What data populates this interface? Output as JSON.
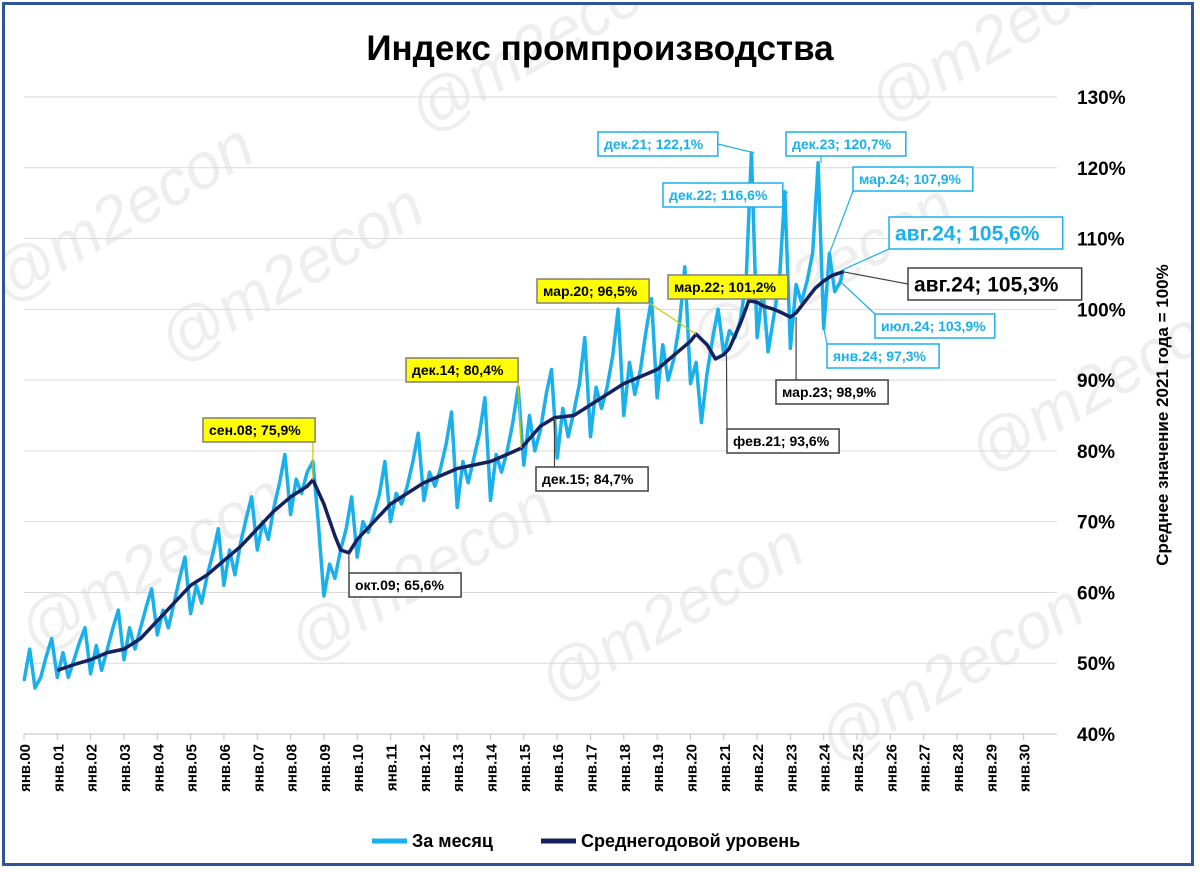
{
  "watermark": "@m2econ",
  "colors": {
    "monthly": "#1ab0ec",
    "average": "#14215c",
    "callout_yellow": "#ffff00",
    "frame": "#2f5597"
  },
  "chart_data": {
    "type": "line",
    "title": "Индекс промпроизводства",
    "ylabel": "Среднее значение 2021 года = 100%",
    "ylim": [
      40,
      130
    ],
    "yticks": [
      40,
      50,
      60,
      70,
      80,
      90,
      100,
      110,
      120,
      130
    ],
    "ytick_labels": [
      "40%",
      "50%",
      "60%",
      "70%",
      "80%",
      "90%",
      "100%",
      "110%",
      "120%",
      "130%"
    ],
    "xlim": [
      2000,
      2031
    ],
    "xticks": [
      2000,
      2001,
      2002,
      2003,
      2004,
      2005,
      2006,
      2007,
      2008,
      2009,
      2010,
      2011,
      2012,
      2013,
      2014,
      2015,
      2016,
      2017,
      2018,
      2019,
      2020,
      2021,
      2022,
      2023,
      2024,
      2025,
      2026,
      2027,
      2028,
      2029,
      2030
    ],
    "xtick_labels": [
      "янв.00",
      "янв.01",
      "янв.02",
      "янв.03",
      "янв.04",
      "янв.05",
      "янв.06",
      "янв.07",
      "янв.08",
      "янв.09",
      "янв.10",
      "янв.11",
      "янв.12",
      "янв.13",
      "янв.14",
      "янв.15",
      "янв.16",
      "янв.17",
      "янв.18",
      "янв.19",
      "янв.20",
      "янв.21",
      "янв.22",
      "янв.23",
      "янв.24",
      "янв.25",
      "янв.26",
      "янв.27",
      "янв.28",
      "янв.29",
      "янв.30"
    ],
    "legend_position": "bottom",
    "grid": "horizontal",
    "series": [
      {
        "name": "За месяц",
        "color": "#1ab0ec",
        "x": [
          2000.0,
          2000.17,
          2000.33,
          2000.5,
          2000.67,
          2000.83,
          2001.0,
          2001.17,
          2001.33,
          2001.5,
          2001.67,
          2001.83,
          2002.0,
          2002.17,
          2002.33,
          2002.5,
          2002.67,
          2002.83,
          2003.0,
          2003.17,
          2003.33,
          2003.5,
          2003.67,
          2003.83,
          2004.0,
          2004.17,
          2004.33,
          2004.5,
          2004.67,
          2004.83,
          2005.0,
          2005.17,
          2005.33,
          2005.5,
          2005.67,
          2005.83,
          2006.0,
          2006.17,
          2006.33,
          2006.5,
          2006.67,
          2006.83,
          2007.0,
          2007.17,
          2007.33,
          2007.5,
          2007.67,
          2007.83,
          2008.0,
          2008.17,
          2008.33,
          2008.5,
          2008.67,
          2008.83,
          2009.0,
          2009.17,
          2009.33,
          2009.5,
          2009.67,
          2009.83,
          2010.0,
          2010.17,
          2010.33,
          2010.5,
          2010.67,
          2010.83,
          2011.0,
          2011.17,
          2011.33,
          2011.5,
          2011.67,
          2011.83,
          2012.0,
          2012.17,
          2012.33,
          2012.5,
          2012.67,
          2012.83,
          2013.0,
          2013.17,
          2013.33,
          2013.5,
          2013.67,
          2013.83,
          2014.0,
          2014.17,
          2014.33,
          2014.5,
          2014.67,
          2014.83,
          2015.0,
          2015.17,
          2015.33,
          2015.5,
          2015.67,
          2015.83,
          2016.0,
          2016.17,
          2016.33,
          2016.5,
          2016.67,
          2016.83,
          2017.0,
          2017.17,
          2017.33,
          2017.5,
          2017.67,
          2017.83,
          2018.0,
          2018.17,
          2018.33,
          2018.5,
          2018.67,
          2018.83,
          2019.0,
          2019.17,
          2019.33,
          2019.5,
          2019.67,
          2019.83,
          2020.0,
          2020.17,
          2020.33,
          2020.5,
          2020.67,
          2020.83,
          2021.0,
          2021.17,
          2021.33,
          2021.5,
          2021.67,
          2021.83,
          2022.0,
          2022.17,
          2022.33,
          2022.5,
          2022.67,
          2022.83,
          2023.0,
          2023.17,
          2023.33,
          2023.5,
          2023.67,
          2023.83,
          2024.0,
          2024.17,
          2024.33,
          2024.5,
          2024.58
        ],
        "values": [
          47.5,
          52.0,
          46.5,
          48.0,
          51.0,
          53.5,
          48.0,
          51.5,
          48.0,
          50.5,
          53.0,
          55.0,
          48.5,
          52.5,
          49.0,
          52.0,
          55.0,
          57.5,
          50.5,
          55.0,
          52.0,
          55.0,
          58.0,
          60.5,
          54.0,
          57.5,
          55.0,
          58.5,
          62.0,
          65.0,
          57.0,
          61.0,
          58.5,
          62.5,
          65.5,
          69.0,
          61.0,
          66.0,
          62.5,
          67.0,
          70.5,
          73.5,
          66.0,
          70.0,
          67.5,
          72.0,
          75.5,
          79.5,
          71.0,
          76.0,
          74.0,
          77.0,
          78.5,
          70.0,
          59.5,
          64.0,
          62.0,
          66.0,
          69.0,
          73.5,
          65.0,
          70.0,
          68.5,
          71.0,
          74.0,
          78.5,
          70.0,
          74.0,
          72.5,
          75.0,
          78.5,
          82.5,
          73.0,
          77.0,
          75.0,
          77.5,
          81.0,
          85.5,
          72.0,
          78.5,
          75.5,
          79.0,
          82.5,
          87.5,
          73.0,
          79.5,
          77.0,
          80.0,
          84.0,
          89.0,
          78.0,
          85.0,
          80.0,
          83.0,
          88.0,
          91.5,
          79.0,
          86.0,
          82.0,
          85.5,
          89.5,
          96.0,
          82.0,
          89.0,
          86.0,
          89.0,
          93.5,
          100.0,
          85.0,
          92.5,
          88.0,
          91.5,
          97.0,
          101.5,
          87.5,
          95.0,
          90.0,
          93.0,
          98.0,
          106.0,
          89.5,
          92.5,
          84.0,
          91.0,
          96.0,
          100.0,
          93.6,
          97.0,
          96.0,
          98.5,
          104.0,
          122.1,
          96.0,
          103.0,
          94.0,
          99.0,
          104.0,
          116.6,
          94.5,
          103.5,
          101.0,
          104.0,
          108.0,
          120.7,
          97.3,
          107.9,
          102.5,
          103.9,
          105.6
        ]
      },
      {
        "name": "Среднегодовой уровень",
        "color": "#14215c",
        "x": [
          2001.0,
          2001.5,
          2002.0,
          2002.5,
          2003.0,
          2003.5,
          2004.0,
          2004.5,
          2005.0,
          2005.5,
          2006.0,
          2006.5,
          2007.0,
          2007.5,
          2008.0,
          2008.5,
          2008.67,
          2009.0,
          2009.33,
          2009.5,
          2009.75,
          2010.0,
          2010.5,
          2011.0,
          2011.5,
          2012.0,
          2012.5,
          2013.0,
          2013.5,
          2014.0,
          2014.5,
          2014.92,
          2015.5,
          2015.92,
          2016.5,
          2017.0,
          2017.5,
          2018.0,
          2018.5,
          2019.0,
          2019.5,
          2020.0,
          2020.17,
          2020.5,
          2020.75,
          2021.0,
          2021.17,
          2021.5,
          2021.75,
          2022.0,
          2022.17,
          2022.5,
          2022.75,
          2023.0,
          2023.17,
          2023.5,
          2023.75,
          2024.0,
          2024.25,
          2024.58
        ],
        "values": [
          49.0,
          49.8,
          50.5,
          51.5,
          52.0,
          53.5,
          56.0,
          58.5,
          61.0,
          62.5,
          64.5,
          66.5,
          69.0,
          71.5,
          73.5,
          75.0,
          75.9,
          72.5,
          68.0,
          66.0,
          65.6,
          67.5,
          70.0,
          72.5,
          74.0,
          75.5,
          76.5,
          77.5,
          78.0,
          78.5,
          79.5,
          80.4,
          83.5,
          84.7,
          85.0,
          86.5,
          88.0,
          89.5,
          90.5,
          91.5,
          93.5,
          95.5,
          96.5,
          95.0,
          93.0,
          93.6,
          94.5,
          98.0,
          101.2,
          101.0,
          100.5,
          100.0,
          99.5,
          98.9,
          99.5,
          101.5,
          103.0,
          104.0,
          104.8,
          105.3
        ]
      }
    ],
    "annotations": [
      {
        "text": "сен.08; 75,9%",
        "x": 2008.67,
        "y": 75.9,
        "style": "yellow"
      },
      {
        "text": "окт.09; 65,6%",
        "x": 2009.75,
        "y": 65.6,
        "style": "white"
      },
      {
        "text": "дек.14; 80,4%",
        "x": 2014.92,
        "y": 80.4,
        "style": "yellow"
      },
      {
        "text": "дек.15; 84,7%",
        "x": 2015.92,
        "y": 84.7,
        "style": "white"
      },
      {
        "text": "мар.20; 96,5%",
        "x": 2020.17,
        "y": 96.5,
        "style": "yellow"
      },
      {
        "text": "фев.21; 93,6%",
        "x": 2021.08,
        "y": 93.6,
        "style": "white"
      },
      {
        "text": "мар.22; 101,2%",
        "x": 2022.17,
        "y": 101.2,
        "style": "yellow"
      },
      {
        "text": "мар.23; 98,9%",
        "x": 2023.17,
        "y": 98.9,
        "style": "white"
      },
      {
        "text": "дек.21; 122,1%",
        "x": 2021.92,
        "y": 122.1,
        "style": "blue"
      },
      {
        "text": "дек.22; 116,6%",
        "x": 2022.92,
        "y": 116.6,
        "style": "blue"
      },
      {
        "text": "дек.23; 120,7%",
        "x": 2023.92,
        "y": 120.7,
        "style": "blue"
      },
      {
        "text": "мар.24; 107,9%",
        "x": 2024.17,
        "y": 107.9,
        "style": "blue"
      },
      {
        "text": "авг.24; 105,6%",
        "x": 2024.58,
        "y": 105.6,
        "style": "blue-large"
      },
      {
        "text": "авг.24; 105,3%",
        "x": 2024.58,
        "y": 105.3,
        "style": "white-large"
      },
      {
        "text": "июл.24; 103,9%",
        "x": 2024.5,
        "y": 103.9,
        "style": "blue"
      },
      {
        "text": "янв.24; 97,3%",
        "x": 2024.0,
        "y": 97.3,
        "style": "blue"
      }
    ]
  }
}
